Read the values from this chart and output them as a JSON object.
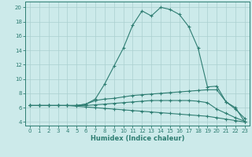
{
  "xlabel": "Humidex (Indice chaleur)",
  "bg_color": "#cceaea",
  "line_color": "#2e7d72",
  "grid_color": "#aacfcf",
  "xlim": [
    -0.5,
    23.5
  ],
  "ylim": [
    3.5,
    20.8
  ],
  "xticks": [
    0,
    1,
    2,
    3,
    4,
    5,
    6,
    7,
    8,
    9,
    10,
    11,
    12,
    13,
    14,
    15,
    16,
    17,
    18,
    19,
    20,
    21,
    22,
    23
  ],
  "yticks": [
    4,
    6,
    8,
    10,
    12,
    14,
    16,
    18,
    20
  ],
  "line1_y": [
    6.3,
    6.3,
    6.3,
    6.3,
    6.3,
    6.3,
    6.5,
    7.2,
    9.3,
    11.8,
    14.3,
    17.5,
    19.5,
    18.8,
    20.0,
    19.7,
    19.0,
    17.3,
    14.3,
    8.9,
    9.0,
    6.8,
    6.0,
    4.0
  ],
  "line2_y": [
    6.3,
    6.3,
    6.3,
    6.3,
    6.3,
    6.3,
    6.5,
    7.0,
    7.2,
    7.3,
    7.5,
    7.7,
    7.8,
    7.9,
    8.0,
    8.1,
    8.2,
    8.3,
    8.4,
    8.5,
    8.5,
    6.8,
    5.8,
    4.5
  ],
  "line3_y": [
    6.3,
    6.3,
    6.3,
    6.3,
    6.3,
    6.3,
    6.3,
    6.4,
    6.5,
    6.6,
    6.7,
    6.8,
    6.9,
    7.0,
    7.0,
    7.0,
    7.0,
    7.0,
    6.9,
    6.7,
    5.8,
    5.2,
    4.6,
    4.1
  ],
  "line4_y": [
    6.3,
    6.3,
    6.3,
    6.3,
    6.3,
    6.2,
    6.1,
    6.0,
    5.9,
    5.8,
    5.7,
    5.6,
    5.5,
    5.4,
    5.3,
    5.2,
    5.1,
    5.0,
    4.9,
    4.8,
    4.6,
    4.4,
    4.2,
    4.0
  ],
  "tickfontsize": 5,
  "xlabelfontsize": 6
}
